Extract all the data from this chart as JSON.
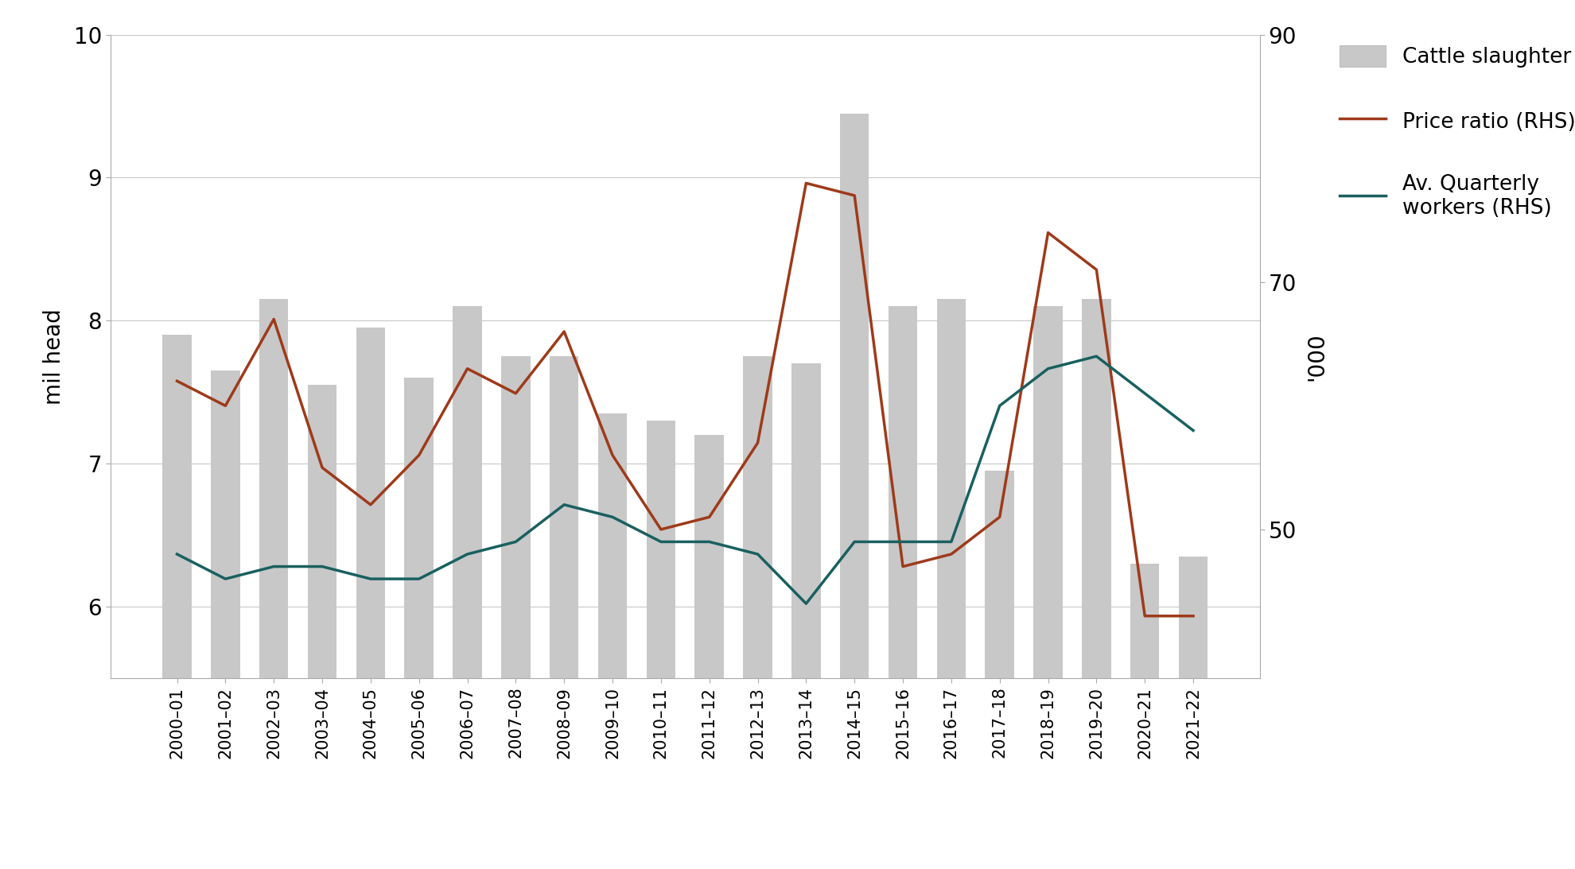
{
  "categories": [
    "2000–01",
    "2001–02",
    "2002–03",
    "2003–04",
    "2004–05",
    "2005–06",
    "2006–07",
    "2007–08",
    "2008–09",
    "2009–10",
    "2010–11",
    "2011–12",
    "2012–13",
    "2013–14",
    "2014–15",
    "2015–16",
    "2016–17",
    "2017–18",
    "2018–19",
    "2019–20",
    "2020–21",
    "2021–22"
  ],
  "cattle_slaughter": [
    7.9,
    7.65,
    8.15,
    7.55,
    7.95,
    7.6,
    8.1,
    7.75,
    7.75,
    7.35,
    7.3,
    7.2,
    7.75,
    7.7,
    9.45,
    8.1,
    8.15,
    6.95,
    8.1,
    8.15,
    6.3,
    6.35
  ],
  "price_ratio": [
    62,
    60,
    67,
    55,
    52,
    56,
    63,
    61,
    66,
    56,
    50,
    51,
    57,
    78,
    77,
    47,
    48,
    51,
    74,
    71,
    43,
    43
  ],
  "avg_workers": [
    48,
    46,
    47,
    47,
    46,
    46,
    48,
    49,
    52,
    51,
    49,
    49,
    48,
    44,
    49,
    49,
    49,
    60,
    63,
    64,
    61,
    58
  ],
  "bar_color": "#c8c8c8",
  "price_ratio_color": "#9e3a1a",
  "avg_workers_color": "#1a6060",
  "lhs_ylim": [
    5.5,
    10.0
  ],
  "lhs_yticks": [
    6,
    7,
    8,
    9,
    10
  ],
  "rhs_ylim": [
    38.0,
    90.0
  ],
  "rhs_yticks": [
    50,
    70,
    90
  ],
  "ylabel_left": "mil head",
  "ylabel_right": "'000",
  "grid_color": "#c8c8c8",
  "legend_labels": [
    "Cattle slaughter",
    "Price ratio (RHS)",
    "Av. Quarterly\nworkers (RHS)"
  ],
  "legend_colors": [
    "#c8c8c8",
    "#9e3a1a",
    "#1a6060"
  ]
}
